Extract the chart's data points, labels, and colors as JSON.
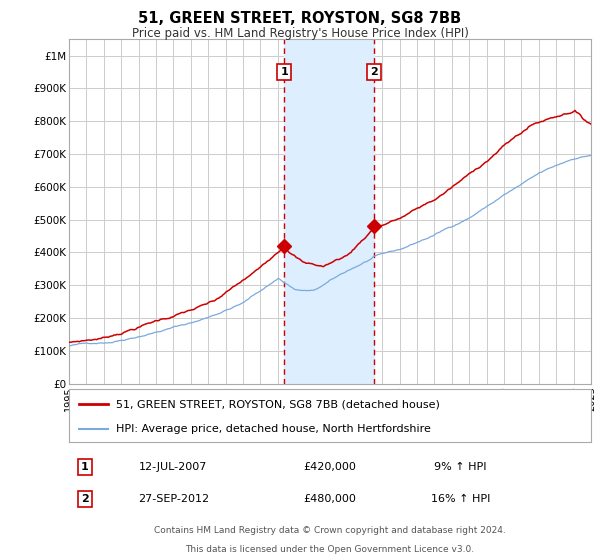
{
  "title": "51, GREEN STREET, ROYSTON, SG8 7BB",
  "subtitle": "Price paid vs. HM Land Registry's House Price Index (HPI)",
  "background_color": "#ffffff",
  "plot_bg_color": "#ffffff",
  "grid_color": "#cccccc",
  "red_line_color": "#cc0000",
  "blue_line_color": "#7aaadd",
  "shade_color": "#ddeeff",
  "marker1_date_str": "12-JUL-2007",
  "marker1_price_str": "£420,000",
  "marker1_hpi_str": "9% ↑ HPI",
  "marker2_date_str": "27-SEP-2012",
  "marker2_price_str": "£480,000",
  "marker2_hpi_str": "16% ↑ HPI",
  "legend_line1": "51, GREEN STREET, ROYSTON, SG8 7BB (detached house)",
  "legend_line2": "HPI: Average price, detached house, North Hertfordshire",
  "footer1": "Contains HM Land Registry data © Crown copyright and database right 2024.",
  "footer2": "This data is licensed under the Open Government Licence v3.0.",
  "ylim": [
    0,
    1050000
  ],
  "yticks": [
    0,
    100000,
    200000,
    300000,
    400000,
    500000,
    600000,
    700000,
    800000,
    900000,
    1000000
  ],
  "ytick_labels": [
    "£0",
    "£100K",
    "£200K",
    "£300K",
    "£400K",
    "£500K",
    "£600K",
    "£700K",
    "£800K",
    "£900K",
    "£1M"
  ]
}
